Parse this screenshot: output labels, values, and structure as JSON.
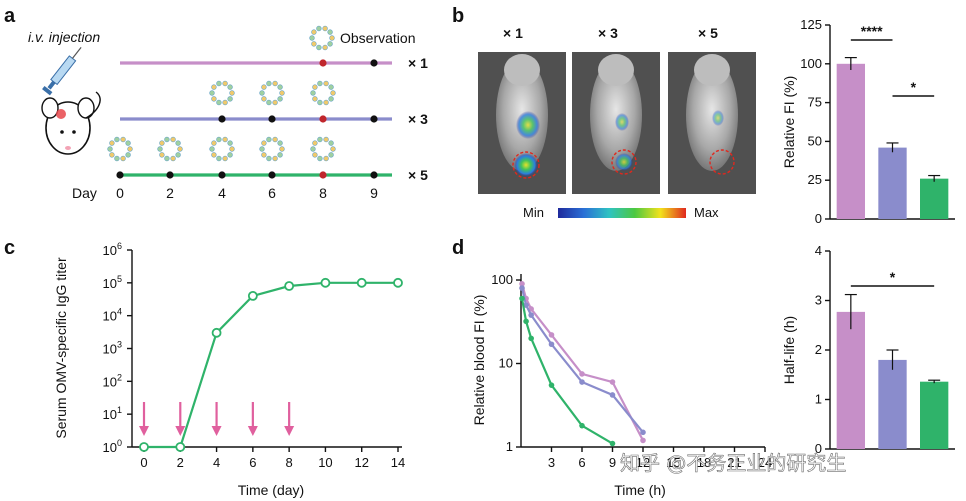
{
  "panel_labels": {
    "a": "a",
    "b": "b",
    "c": "c",
    "d": "d"
  },
  "watermark": "知乎 @不务正业的研究生",
  "panel_a": {
    "injection_label": "i.v. injection",
    "observation_label": "Observation",
    "day_label": "Day",
    "days": [
      "0",
      "2",
      "4",
      "6",
      "8",
      "9"
    ],
    "groups": [
      {
        "label": "× 1",
        "color": "#c68fc8",
        "doses": [
          8
        ],
        "observe": 8
      },
      {
        "label": "× 3",
        "color": "#8a8ccc",
        "doses": [
          4,
          6,
          8
        ],
        "observe": 8
      },
      {
        "label": "× 5",
        "color": "#2fb36a",
        "doses": [
          0,
          2,
          4,
          6,
          8
        ],
        "observe": 8
      }
    ]
  },
  "panel_b": {
    "headers": [
      {
        "text": "× 1",
        "color": "#c68fc8"
      },
      {
        "text": "× 3",
        "color": "#8a8ccc"
      },
      {
        "text": "× 5",
        "color": "#2fb36a"
      }
    ],
    "scale_min": "Min",
    "scale_max": "Max"
  },
  "chart_data": [
    {
      "id": "b-bar",
      "type": "bar",
      "categories": [
        "× 1",
        "× 3",
        "× 5"
      ],
      "values": [
        100,
        46,
        26
      ],
      "errors": [
        4,
        3,
        2
      ],
      "colors": [
        "#c68fc8",
        "#8a8ccc",
        "#2fb36a"
      ],
      "ylabel": "Relative FI (%)",
      "ylim": [
        0,
        125
      ],
      "yticks": [
        "0",
        "25",
        "50",
        "75",
        "100",
        "125"
      ],
      "annotations": [
        {
          "text": "****",
          "from": 0,
          "to": 1
        },
        {
          "text": "*",
          "from": 1,
          "to": 2
        }
      ]
    },
    {
      "id": "c-line",
      "type": "line",
      "x": [
        0,
        2,
        4,
        6,
        8,
        10,
        12,
        14
      ],
      "y": [
        1,
        1,
        3000,
        40000,
        80000,
        100000,
        100000,
        100000
      ],
      "xlabel": "Time (day)",
      "ylabel": "Serum OMV-specific IgG titer",
      "xlim": [
        0,
        14
      ],
      "xticks": [
        "0",
        "2",
        "4",
        "6",
        "8",
        "10",
        "12",
        "14"
      ],
      "ylim": [
        1,
        1000000
      ],
      "yscale": "log",
      "ytick_labels": [
        "10",
        "10",
        "10",
        "10",
        "10",
        "10",
        "10"
      ],
      "ytick_exponents": [
        "0",
        "1",
        "2",
        "3",
        "4",
        "5",
        "6"
      ],
      "injection_days": [
        0,
        2,
        4,
        6,
        8
      ],
      "color": "#2fb36a",
      "arrow_color": "#e0609e"
    },
    {
      "id": "d-line",
      "type": "line",
      "xlabel": "Time (h)",
      "ylabel": "Relative blood FI (%)",
      "xlim": [
        0,
        24
      ],
      "xticks": [
        "3",
        "6",
        "9",
        "12",
        "15",
        "18",
        "21",
        "24"
      ],
      "ylim": [
        1,
        100
      ],
      "yscale": "log",
      "yticks": [
        "1",
        "10",
        "100"
      ],
      "series": [
        {
          "name": "× 1",
          "color": "#c68fc8",
          "x": [
            0.1,
            0.5,
            1,
            3,
            6,
            9,
            12
          ],
          "y": [
            90,
            60,
            45,
            22,
            7.5,
            6,
            1.2
          ]
        },
        {
          "name": "× 3",
          "color": "#8a8ccc",
          "x": [
            0.1,
            0.5,
            1,
            3,
            6,
            9,
            12
          ],
          "y": [
            80,
            50,
            38,
            17,
            6,
            4.2,
            1.5
          ]
        },
        {
          "name": "× 5",
          "color": "#2fb36a",
          "x": [
            0.1,
            0.5,
            1,
            3,
            6,
            9
          ],
          "y": [
            60,
            32,
            20,
            5.5,
            1.8,
            1.1
          ]
        }
      ]
    },
    {
      "id": "d-bar",
      "type": "bar",
      "categories": [
        "× 1",
        "× 3",
        "× 5"
      ],
      "values": [
        2.77,
        1.8,
        1.36
      ],
      "errors": [
        0.35,
        0.2,
        0.03
      ],
      "colors": [
        "#c68fc8",
        "#8a8ccc",
        "#2fb36a"
      ],
      "ylabel": "Half-life (h)",
      "ylim": [
        0,
        4
      ],
      "yticks": [
        "0",
        "1",
        "2",
        "3",
        "4"
      ],
      "annotations": [
        {
          "text": "*",
          "from": 0,
          "to": 2
        }
      ]
    }
  ]
}
